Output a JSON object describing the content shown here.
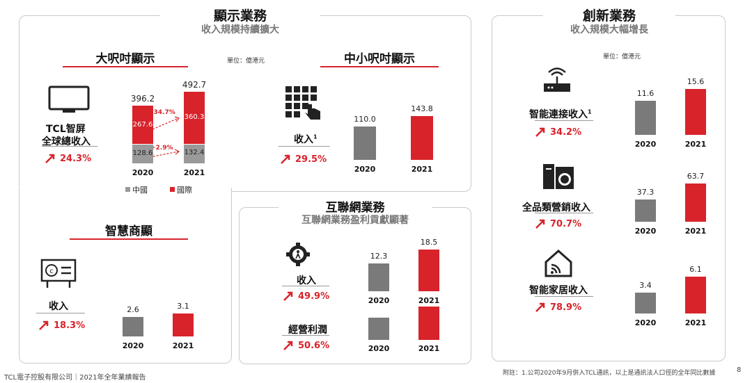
{
  "display": {
    "title": "顯示業務",
    "subtitle": "收入規模持續擴大",
    "unit": "單位：億港元",
    "large": {
      "heading": "大呎吋顯示",
      "label_line1": "TCL智屏",
      "label_line2": "全球總收入",
      "growth": "24.3%",
      "growth_intl": "+34.7%",
      "growth_china": "+2.9%",
      "legend_china": "中國",
      "legend_intl": "國際"
    },
    "small": {
      "heading": "中小呎吋顯示",
      "label": "收入",
      "sup": "1",
      "growth": "29.5%"
    },
    "commercial": {
      "heading": "智慧商顯",
      "label": "收入",
      "growth": "18.3%"
    }
  },
  "internet": {
    "title": "互聯網業務",
    "subtitle": "互聯網業務盈利貢獻顯著",
    "revenue": {
      "label": "收入",
      "growth": "49.9%"
    },
    "profit": {
      "label": "經營利潤",
      "growth": "50.6%"
    }
  },
  "innovation": {
    "title": "創新業務",
    "subtitle": "收入規模大幅增長",
    "unit": "單位：億港元",
    "connect": {
      "label": "智能連接收入",
      "sup": "1",
      "growth": "34.2%"
    },
    "appliance": {
      "label": "全品類營銷收入",
      "growth": "70.7%"
    },
    "home": {
      "label": "智能家居收入",
      "growth": "78.9%"
    }
  },
  "footer": {
    "left": "TCL電子控股有限公司｜2021年全年業績報告",
    "note": "附註：1.公司2020年9月併入TCL通訊，以上是通訊法人口徑的全年同比數據",
    "page": "8"
  },
  "colors": {
    "accent": "#d8232a",
    "grey": "#7a7a7a"
  },
  "chart_data": [
    {
      "type": "bar",
      "title": "大呎吋顯示",
      "categories": [
        "2020",
        "2021"
      ],
      "series": [
        {
          "name": "中國",
          "values": [
            128.6,
            132.4
          ]
        },
        {
          "name": "國際",
          "values": [
            267.6,
            360.3
          ]
        }
      ],
      "totals": [
        "396.2",
        "492.7"
      ],
      "stacked": true
    },
    {
      "type": "bar",
      "title": "中小呎吋顯示",
      "categories": [
        "2020",
        "2021"
      ],
      "values": [
        110.0,
        143.8
      ],
      "labels": [
        "110.0",
        "143.8"
      ]
    },
    {
      "type": "bar",
      "title": "智慧商顯",
      "categories": [
        "2020",
        "2021"
      ],
      "values": [
        2.6,
        3.1
      ],
      "labels": [
        "2.6",
        "3.1"
      ]
    },
    {
      "type": "bar",
      "title": "互聯網業務 收入",
      "categories": [
        "2020",
        "2021"
      ],
      "values": [
        12.3,
        18.5
      ],
      "labels": [
        "12.3",
        "18.5"
      ]
    },
    {
      "type": "bar",
      "title": "互聯網業務 經營利潤",
      "categories": [
        "2020",
        "2021"
      ],
      "values": [
        null,
        null
      ],
      "labels": [
        "",
        ""
      ]
    },
    {
      "type": "bar",
      "title": "智能連接收入",
      "categories": [
        "2020",
        "2021"
      ],
      "values": [
        11.6,
        15.6
      ],
      "labels": [
        "11.6",
        "15.6"
      ]
    },
    {
      "type": "bar",
      "title": "全品類營銷收入",
      "categories": [
        "2020",
        "2021"
      ],
      "values": [
        37.3,
        63.7
      ],
      "labels": [
        "37.3",
        "63.7"
      ]
    },
    {
      "type": "bar",
      "title": "智能家居收入",
      "categories": [
        "2020",
        "2021"
      ],
      "values": [
        3.4,
        6.1
      ],
      "labels": [
        "3.4",
        "6.1"
      ]
    }
  ]
}
